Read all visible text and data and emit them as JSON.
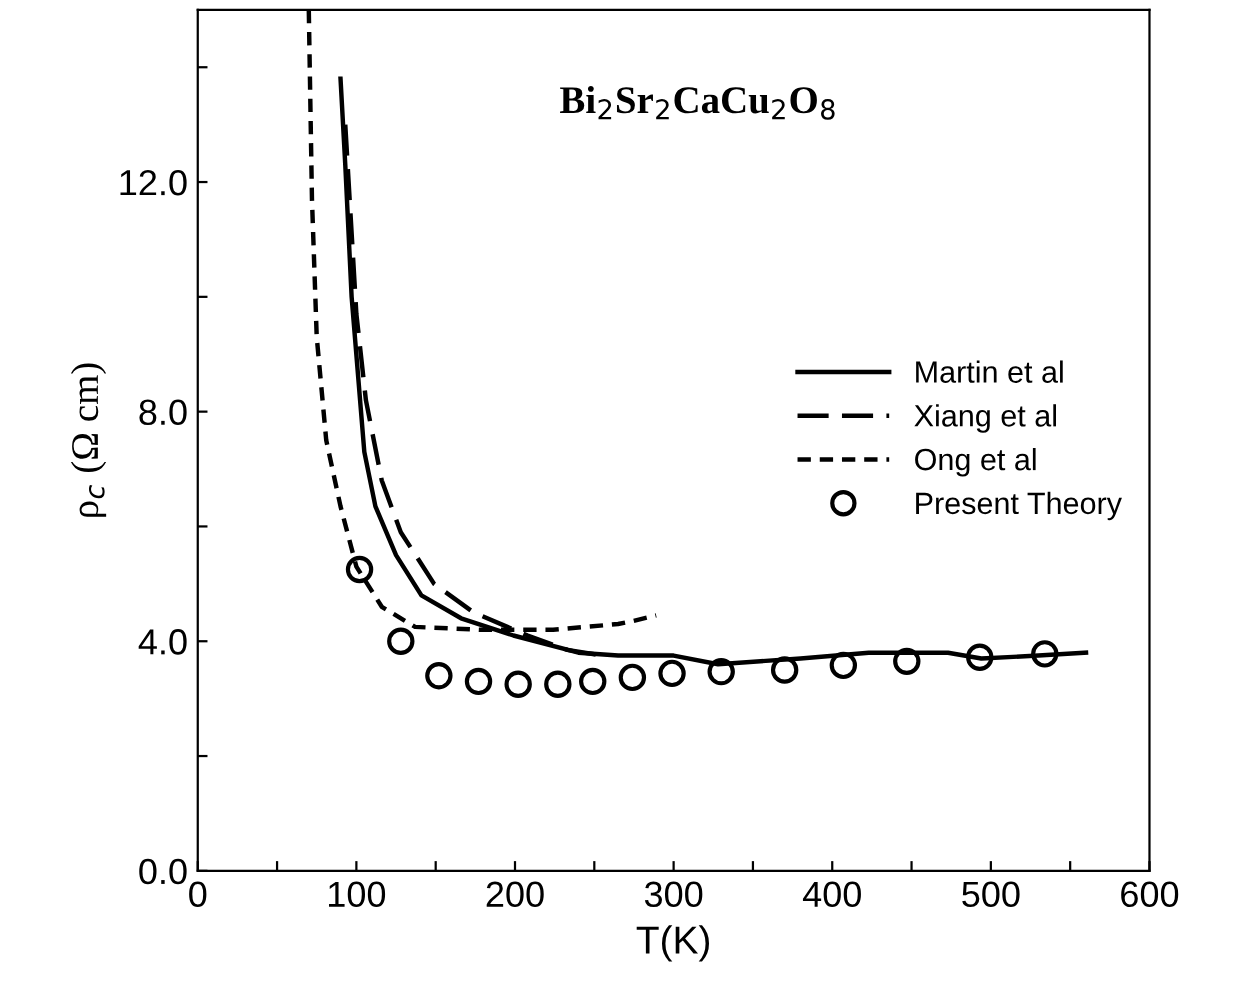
{
  "chart_data": {
    "type": "line",
    "xlabel": "T(K)",
    "ylabel": "ρ$_{c}$ (Ω cm)",
    "annotations": [
      "Bi$_{2}$Sr$_{2}$CaCu$_{2}$O$_{8}$"
    ],
    "xlim": [
      0,
      600
    ],
    "ylim": [
      0,
      15
    ],
    "xticks": [
      0,
      {
        "value": 50,
        "label": null
      },
      100,
      {
        "value": 150,
        "label": null
      },
      200,
      {
        "value": 250,
        "label": null
      },
      300,
      {
        "value": 350,
        "label": null
      },
      400,
      {
        "value": 450,
        "label": null
      },
      500,
      {
        "value": 550,
        "label": null
      },
      600
    ],
    "yticks": [
      {
        "value": 0,
        "label": "0.0"
      },
      {
        "value": 2,
        "label": null
      },
      {
        "value": 4,
        "label": "4.0"
      },
      {
        "value": 6,
        "label": null
      },
      {
        "value": 8,
        "label": "8.0"
      },
      {
        "value": 10,
        "label": null
      },
      {
        "value": 12,
        "label": "12.0"
      },
      {
        "value": 14,
        "label": null
      }
    ],
    "grid": false,
    "legend": "right",
    "series": [
      {
        "name": "Martin et al",
        "color": "#000000",
        "line_style": "solid",
        "marker": "none",
        "x": [
          90,
          93,
          97,
          105,
          112,
          125,
          141,
          166,
          199,
          240,
          265,
          300,
          328,
          380,
          423,
          473,
          494,
          530,
          560
        ],
        "values": [
          13.8,
          12.3,
          10.0,
          7.3,
          6.35,
          5.5,
          4.8,
          4.4,
          4.1,
          3.8,
          3.75,
          3.75,
          3.6,
          3.7,
          3.8,
          3.8,
          3.7,
          3.75,
          3.8
        ]
      },
      {
        "name": "Xiang et al",
        "color": "#000000",
        "line_style": "dashed",
        "marker": "none",
        "x": [
          93,
          100,
          106,
          116,
          128,
          149,
          174,
          208,
          233,
          255
        ],
        "values": [
          13.0,
          9.7,
          8.2,
          6.8,
          5.9,
          5.0,
          4.5,
          4.1,
          3.85,
          3.75
        ]
      },
      {
        "name": "Ong et al",
        "color": "#000000",
        "line_style": "dotted",
        "marker": "none",
        "x": [
          70,
          72,
          75,
          81,
          90,
          100,
          116,
          137,
          178,
          224,
          265,
          274,
          289
        ],
        "values": [
          15.0,
          11.7,
          9.3,
          7.5,
          6.35,
          5.3,
          4.6,
          4.25,
          4.2,
          4.2,
          4.3,
          4.35,
          4.45
        ]
      },
      {
        "name": "Present Theory",
        "type": "scatter",
        "color": "#000000",
        "marker": "circle",
        "x": [
          102,
          128,
          152,
          177,
          202,
          227,
          249,
          274,
          299,
          330,
          370,
          407,
          447,
          493,
          534
        ],
        "values": [
          5.25,
          4.0,
          3.4,
          3.3,
          3.25,
          3.25,
          3.3,
          3.37,
          3.44,
          3.47,
          3.5,
          3.58,
          3.65,
          3.72,
          3.78
        ]
      }
    ]
  }
}
